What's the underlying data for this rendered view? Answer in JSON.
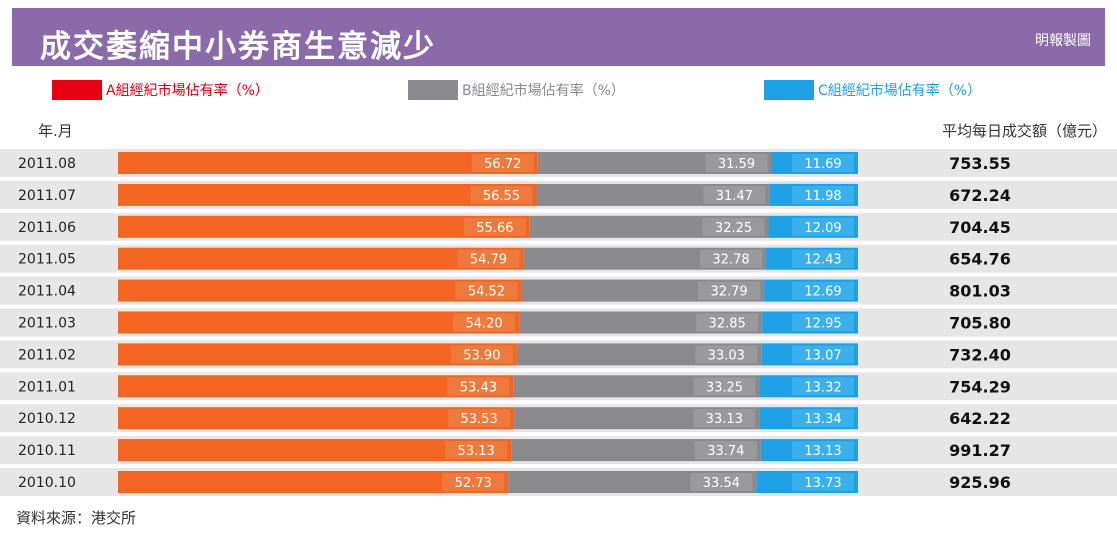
{
  "title": "成交萎縮中小券商生意減少",
  "credit": "明報製圖",
  "legend": [
    {
      "label": "A組經紀市場佔有率（%）",
      "color": "#e60012"
    },
    {
      "label": "B組經紀市場佔有率（%）",
      "color": "#8a8a8e"
    },
    {
      "label": "C組經紀市場佔有率（%）",
      "color": "#1ea0e6"
    }
  ],
  "colors": {
    "a_bar": "#f26522",
    "b_bar": "#8a8a8e",
    "c_bar": "#1ea0e6",
    "track": "#e6e6e6",
    "header": "#8b6aaa"
  },
  "header": {
    "left": "年.月",
    "right": "平均每日成交額（億元）"
  },
  "source": "資料來源：港交所",
  "chart_data": {
    "type": "bar",
    "stacked": true,
    "orientation": "horizontal",
    "title": "成交萎縮中小券商生意減少",
    "categories": [
      "2011.08",
      "2011.07",
      "2011.06",
      "2011.05",
      "2011.04",
      "2011.03",
      "2011.02",
      "2011.01",
      "2010.12",
      "2010.11",
      "2010.10"
    ],
    "series": [
      {
        "name": "A組經紀市場佔有率（%）",
        "values": [
          56.72,
          56.55,
          55.66,
          54.79,
          54.52,
          54.2,
          53.9,
          53.43,
          53.53,
          53.13,
          52.73
        ]
      },
      {
        "name": "B組經紀市場佔有率（%）",
        "values": [
          31.59,
          31.47,
          32.25,
          32.78,
          32.79,
          32.85,
          33.03,
          33.25,
          33.13,
          33.74,
          33.54
        ]
      },
      {
        "name": "C組經紀市場佔有率（%）",
        "values": [
          11.69,
          11.98,
          12.09,
          12.43,
          12.69,
          12.95,
          13.07,
          13.32,
          13.34,
          13.13,
          13.73
        ]
      }
    ],
    "turnover": [
      "753.55",
      "672.24",
      "704.45",
      "654.76",
      "801.03",
      "705.80",
      "732.40",
      "754.29",
      "642.22",
      "991.27",
      "925.96"
    ]
  }
}
